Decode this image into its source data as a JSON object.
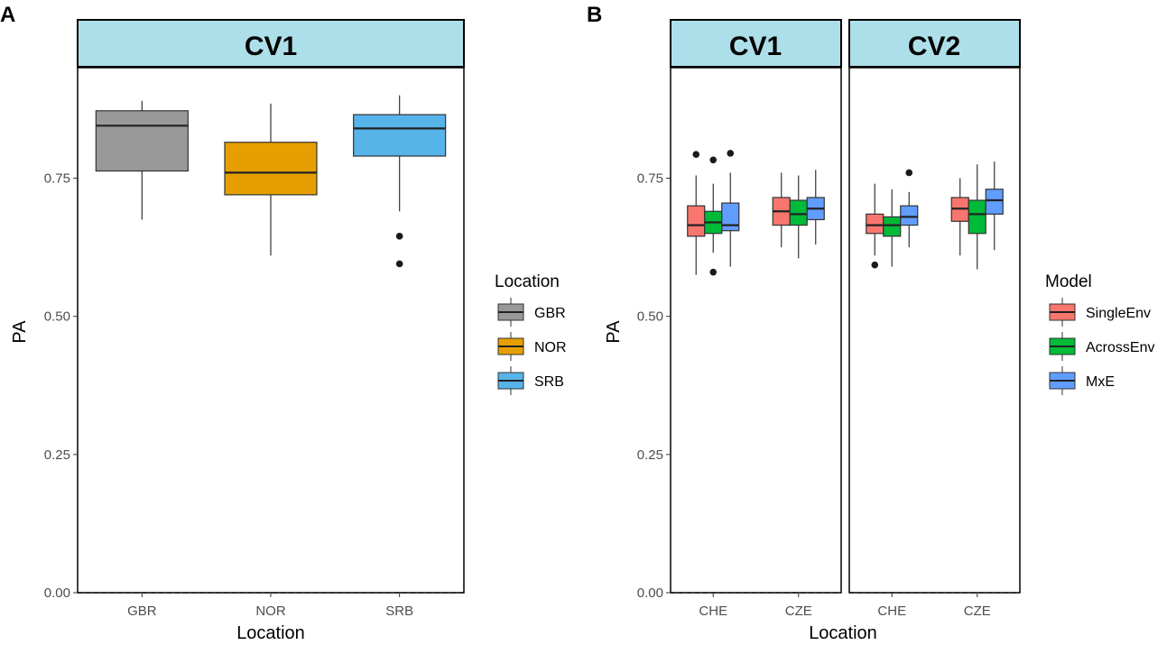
{
  "chart_data": [
    {
      "panel_tag": "A",
      "type": "boxplot",
      "facets": [
        {
          "strip_label": "CV1",
          "categories": [
            "GBR",
            "NOR",
            "SRB"
          ],
          "boxes": [
            {
              "category": "GBR",
              "group": "GBR",
              "min": 0.675,
              "q1": 0.763,
              "median": 0.845,
              "q3": 0.872,
              "max": 0.89,
              "outliers": []
            },
            {
              "category": "NOR",
              "group": "NOR",
              "min": 0.61,
              "q1": 0.72,
              "median": 0.76,
              "q3": 0.815,
              "max": 0.885,
              "outliers": []
            },
            {
              "category": "SRB",
              "group": "SRB",
              "min": 0.69,
              "q1": 0.79,
              "median": 0.84,
              "q3": 0.865,
              "max": 0.9,
              "outliers": [
                0.645,
                0.595
              ]
            }
          ]
        }
      ],
      "xlabel": "Location",
      "ylabel": "PA",
      "ylim": [
        0,
        0.95
      ],
      "yticks": [
        0,
        0.25,
        0.5,
        0.75
      ],
      "ytick_labels": [
        "0.00",
        "0.25",
        "0.50",
        "0.75"
      ],
      "hline": 0,
      "legend": {
        "title": "Location",
        "position": "right",
        "entries": [
          {
            "label": "GBR",
            "color": "#999999"
          },
          {
            "label": "NOR",
            "color": "#E69F00"
          },
          {
            "label": "SRB",
            "color": "#56B4E9"
          }
        ]
      }
    },
    {
      "panel_tag": "B",
      "type": "boxplot",
      "facets": [
        {
          "strip_label": "CV1",
          "categories": [
            "CHE",
            "CZE"
          ],
          "boxes": [
            {
              "category": "CHE",
              "group": "SingleEnv",
              "min": 0.575,
              "q1": 0.645,
              "median": 0.665,
              "q3": 0.7,
              "max": 0.755,
              "outliers": [
                0.793
              ]
            },
            {
              "category": "CHE",
              "group": "AcrossEnv",
              "min": 0.615,
              "q1": 0.65,
              "median": 0.67,
              "q3": 0.69,
              "max": 0.74,
              "outliers": [
                0.783,
                0.58
              ]
            },
            {
              "category": "CHE",
              "group": "MxE",
              "min": 0.59,
              "q1": 0.655,
              "median": 0.665,
              "q3": 0.705,
              "max": 0.76,
              "outliers": [
                0.795
              ]
            },
            {
              "category": "CZE",
              "group": "SingleEnv",
              "min": 0.625,
              "q1": 0.665,
              "median": 0.69,
              "q3": 0.715,
              "max": 0.76
            },
            {
              "category": "CZE",
              "group": "AcrossEnv",
              "min": 0.605,
              "q1": 0.665,
              "median": 0.685,
              "q3": 0.71,
              "max": 0.755
            },
            {
              "category": "CZE",
              "group": "MxE",
              "min": 0.63,
              "q1": 0.675,
              "median": 0.695,
              "q3": 0.715,
              "max": 0.765
            }
          ]
        },
        {
          "strip_label": "CV2",
          "categories": [
            "CHE",
            "CZE"
          ],
          "boxes": [
            {
              "category": "CHE",
              "group": "SingleEnv",
              "min": 0.61,
              "q1": 0.65,
              "median": 0.665,
              "q3": 0.685,
              "max": 0.74,
              "outliers": [
                0.593
              ]
            },
            {
              "category": "CHE",
              "group": "AcrossEnv",
              "min": 0.59,
              "q1": 0.645,
              "median": 0.665,
              "q3": 0.68,
              "max": 0.73
            },
            {
              "category": "CHE",
              "group": "MxE",
              "min": 0.625,
              "q1": 0.665,
              "median": 0.68,
              "q3": 0.7,
              "max": 0.725,
              "outliers": [
                0.76
              ]
            },
            {
              "category": "CZE",
              "group": "SingleEnv",
              "min": 0.61,
              "q1": 0.672,
              "median": 0.695,
              "q3": 0.715,
              "max": 0.75
            },
            {
              "category": "CZE",
              "group": "AcrossEnv",
              "min": 0.585,
              "q1": 0.65,
              "median": 0.685,
              "q3": 0.71,
              "max": 0.775
            },
            {
              "category": "CZE",
              "group": "MxE",
              "min": 0.62,
              "q1": 0.685,
              "median": 0.71,
              "q3": 0.73,
              "max": 0.78
            }
          ]
        }
      ],
      "xlabel": "Location",
      "ylabel": "PA",
      "ylim": [
        0,
        0.95
      ],
      "yticks": [
        0,
        0.25,
        0.5,
        0.75
      ],
      "ytick_labels": [
        "0.00",
        "0.25",
        "0.50",
        "0.75"
      ],
      "hline": 0,
      "legend": {
        "title": "Model",
        "position": "right",
        "entries": [
          {
            "label": "SingleEnv",
            "color": "#F8766D"
          },
          {
            "label": "AcrossEnv",
            "color": "#00BA38"
          },
          {
            "label": "MxE",
            "color": "#619CFF"
          }
        ]
      }
    }
  ],
  "colors": {
    "strip_fill": "#ADDFEA",
    "strip_border": "#000000"
  }
}
